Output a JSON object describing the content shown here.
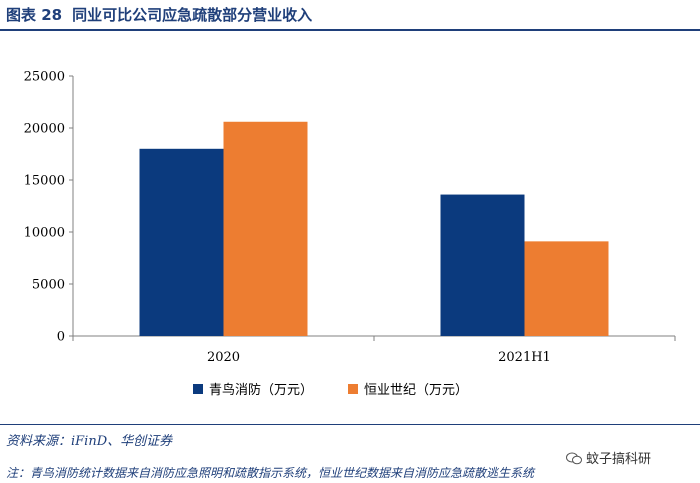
{
  "header": {
    "figure_label": "图表 28",
    "title": "同业可比公司应急疏散部分营业收入"
  },
  "chart_data": {
    "type": "bar",
    "categories": [
      "2020",
      "2021H1"
    ],
    "series": [
      {
        "name": "青鸟消防（万元）",
        "color": "#0b3a7e",
        "values": [
          18000,
          13600
        ]
      },
      {
        "name": "恒业世纪（万元）",
        "color": "#ed7d31",
        "values": [
          20600,
          9100
        ]
      }
    ],
    "ylim": [
      0,
      25000
    ],
    "yticks": [
      "0",
      "5000",
      "10000",
      "15000",
      "20000",
      "25000"
    ],
    "grid": false,
    "legend_position": "bottom"
  },
  "footer": {
    "source": "资料来源：iFinD、华创证券",
    "watermark": "蚊子搞科研",
    "note": "注：青鸟消防统计数据来自消防应急照明和疏散指示系统，恒业世纪数据来自消防应急疏散逃生系统"
  }
}
